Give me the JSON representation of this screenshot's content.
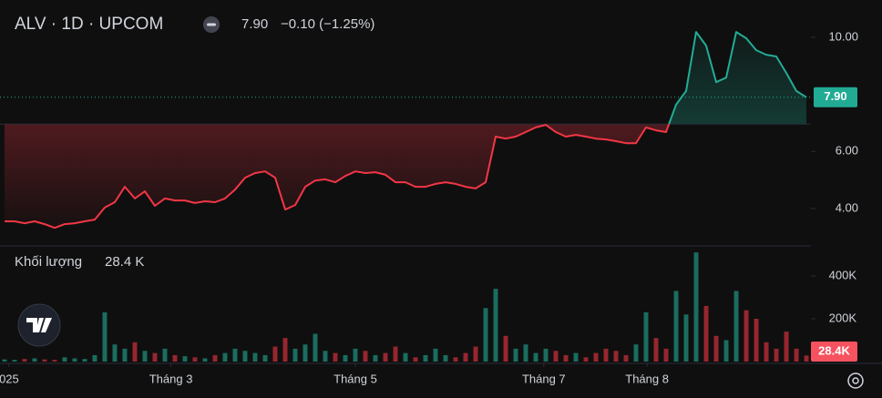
{
  "chart_data": {
    "type": "line",
    "title": "ALV · 1D · UPCOM",
    "last_label": "7.90",
    "change_label": "−0.10 (−1.25%)",
    "up_color": "#22ab94",
    "down_color": "#f23645",
    "baseline": 6.96,
    "x": [
      0,
      1,
      2,
      3,
      4,
      5,
      6,
      7,
      8,
      9,
      10,
      11,
      12,
      13,
      14,
      15,
      16,
      17,
      18,
      19,
      20,
      21,
      22,
      23,
      24,
      25,
      26,
      27,
      28,
      29,
      30,
      31,
      32,
      33,
      34,
      35,
      36,
      37,
      38,
      39,
      40,
      41,
      42,
      43,
      44,
      45,
      46,
      47,
      48,
      49,
      50,
      51,
      52,
      53,
      54,
      55,
      56,
      57,
      58,
      59,
      60,
      61,
      62,
      63,
      64,
      65,
      66,
      67,
      68,
      69,
      70,
      71,
      72,
      73,
      74,
      75,
      76,
      77,
      78,
      79,
      80
    ],
    "values": [
      3.55,
      3.55,
      3.48,
      3.55,
      3.45,
      3.32,
      3.45,
      3.48,
      3.55,
      3.61,
      4.03,
      4.22,
      4.76,
      4.35,
      4.6,
      4.09,
      4.35,
      4.28,
      4.28,
      4.19,
      4.25,
      4.22,
      4.35,
      4.66,
      5.08,
      5.24,
      5.3,
      5.08,
      3.96,
      4.12,
      4.76,
      4.98,
      5.02,
      4.92,
      5.14,
      5.3,
      5.24,
      5.27,
      5.18,
      4.92,
      4.92,
      4.76,
      4.76,
      4.86,
      4.92,
      4.86,
      4.76,
      4.7,
      4.92,
      6.52,
      6.45,
      6.52,
      6.68,
      6.84,
      6.93,
      6.68,
      6.52,
      6.58,
      6.52,
      6.45,
      6.42,
      6.36,
      6.29,
      6.29,
      6.84,
      6.74,
      6.68,
      7.64,
      8.12,
      10.19,
      9.71,
      8.43,
      8.59,
      10.19,
      9.97,
      9.55,
      9.39,
      9.33,
      8.75,
      8.12,
      7.9
    ],
    "xlim": [
      -0.45,
      80.45
    ],
    "xticks": [
      {
        "value": 0.45,
        "label": "025"
      },
      {
        "value": 16.6,
        "label": "Tháng 3"
      },
      {
        "value": 35,
        "label": "Tháng 5"
      },
      {
        "value": 53.8,
        "label": "Tháng 7"
      },
      {
        "value": 64.1,
        "label": "Tháng 8"
      }
    ],
    "ylim": [
      2.75,
      11.31
    ],
    "yticks": [
      {
        "value": 4,
        "label": "4.00"
      },
      {
        "value": 6,
        "label": "6.00"
      },
      {
        "value": 10,
        "label": "10.00"
      }
    ],
    "volume": {
      "title": "Khối lượng",
      "value_label": "28.4 K",
      "last_label": "28.4K",
      "values": [
        10000,
        8000,
        12000,
        15000,
        10000,
        8000,
        20000,
        15000,
        12000,
        30000,
        230000,
        80000,
        60000,
        90000,
        50000,
        40000,
        60000,
        30000,
        25000,
        20000,
        15000,
        30000,
        40000,
        60000,
        50000,
        40000,
        30000,
        70000,
        110000,
        60000,
        80000,
        130000,
        50000,
        40000,
        30000,
        60000,
        50000,
        30000,
        40000,
        70000,
        40000,
        20000,
        30000,
        60000,
        30000,
        20000,
        40000,
        70000,
        250000,
        340000,
        120000,
        60000,
        80000,
        40000,
        60000,
        50000,
        30000,
        40000,
        20000,
        40000,
        60000,
        50000,
        30000,
        80000,
        230000,
        110000,
        60000,
        330000,
        220000,
        510000,
        260000,
        120000,
        100000,
        330000,
        240000,
        200000,
        90000,
        60000,
        140000,
        60000,
        28400
      ],
      "ylim": [
        0,
        532000
      ],
      "yticks": [
        {
          "value": 200000,
          "label": "200K"
        },
        {
          "value": 400000,
          "label": "400K"
        }
      ]
    }
  }
}
